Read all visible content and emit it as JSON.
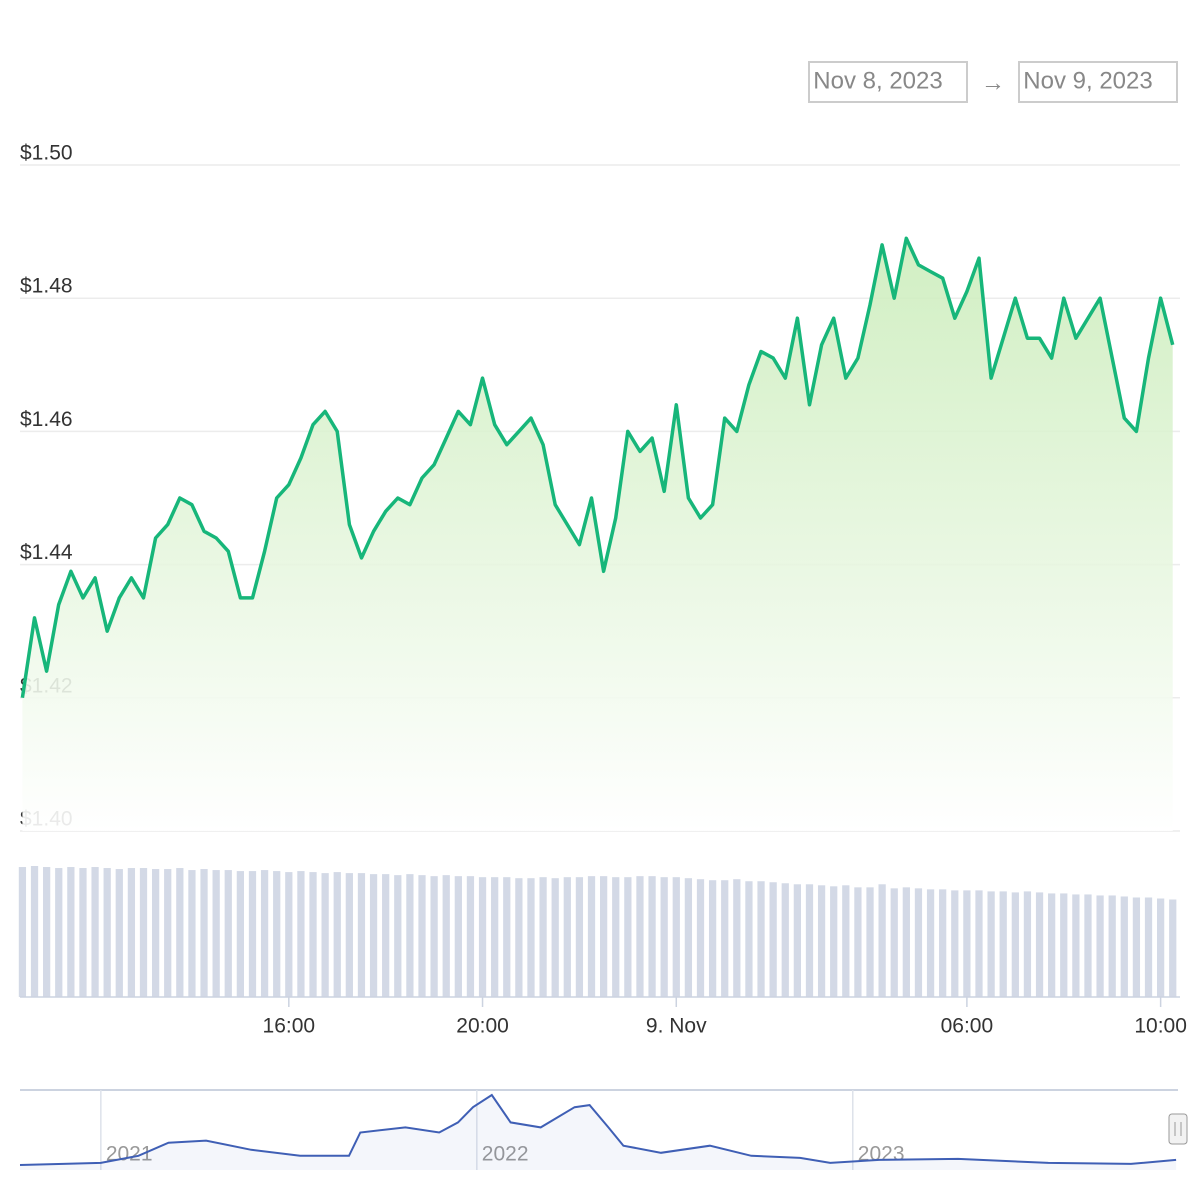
{
  "date_range": {
    "from": "Nov 8, 2023",
    "separator": "→",
    "to": "Nov 9, 2023"
  },
  "chart_data": [
    {
      "type": "area",
      "color": "#17b67a",
      "volume_color": "#d3d9e6",
      "grid": true,
      "x": [
        10.5,
        10.75,
        11,
        11.25,
        11.5,
        11.75,
        12,
        12.25,
        12.5,
        12.75,
        13,
        13.25,
        13.5,
        13.75,
        14,
        14.25,
        14.5,
        14.75,
        15,
        15.25,
        15.5,
        15.75,
        16,
        16.25,
        16.5,
        16.75,
        17,
        17.25,
        17.5,
        17.75,
        18,
        18.25,
        18.5,
        18.75,
        19,
        19.25,
        19.5,
        19.75,
        20,
        20.25,
        20.5,
        20.75,
        21,
        21.25,
        21.5,
        21.75,
        22,
        22.25,
        22.5,
        22.75,
        23,
        23.25,
        23.5,
        23.75,
        24,
        24.25,
        24.5,
        24.75,
        25,
        25.25,
        25.5,
        25.75,
        26,
        26.25,
        26.5,
        26.75,
        27,
        27.25,
        27.5,
        27.75,
        28,
        28.25,
        28.5,
        28.75,
        29,
        29.25,
        29.5,
        29.75,
        30,
        30.25,
        30.5,
        30.75,
        31,
        31.25,
        31.5,
        31.75,
        32,
        32.25,
        32.5,
        32.75,
        33,
        33.25,
        33.5,
        33.75,
        34,
        34.25
      ],
      "values": [
        1.42,
        1.432,
        1.424,
        1.434,
        1.439,
        1.435,
        1.438,
        1.43,
        1.435,
        1.438,
        1.435,
        1.444,
        1.446,
        1.45,
        1.449,
        1.445,
        1.444,
        1.442,
        1.435,
        1.435,
        1.442,
        1.45,
        1.452,
        1.456,
        1.461,
        1.463,
        1.46,
        1.446,
        1.441,
        1.445,
        1.448,
        1.45,
        1.449,
        1.453,
        1.455,
        1.459,
        1.463,
        1.461,
        1.468,
        1.461,
        1.458,
        1.46,
        1.462,
        1.458,
        1.449,
        1.446,
        1.443,
        1.45,
        1.439,
        1.447,
        1.46,
        1.457,
        1.459,
        1.451,
        1.464,
        1.45,
        1.447,
        1.449,
        1.462,
        1.46,
        1.467,
        1.472,
        1.471,
        1.468,
        1.477,
        1.464,
        1.473,
        1.477,
        1.468,
        1.471,
        1.479,
        1.488,
        1.48,
        1.489,
        1.485,
        1.484,
        1.483,
        1.477,
        1.481,
        1.486,
        1.468,
        1.474,
        1.48,
        1.474,
        1.474,
        1.471,
        1.48,
        1.474,
        1.477,
        1.48,
        1.471,
        1.462,
        1.46,
        1.471,
        1.48,
        1.473
      ],
      "volume": [
        128,
        129,
        128,
        127,
        128,
        127,
        128,
        127,
        126,
        127,
        127,
        126,
        126,
        127,
        125,
        126,
        125,
        125,
        124,
        124,
        125,
        124,
        123,
        124,
        123,
        122,
        123,
        122,
        122,
        121,
        121,
        120,
        121,
        120,
        119,
        120,
        119,
        119,
        118,
        118,
        118,
        117,
        117,
        118,
        117,
        118,
        118,
        119,
        119,
        118,
        118,
        119,
        119,
        118,
        118,
        117,
        116,
        115,
        115,
        116,
        114,
        114,
        113,
        112,
        111,
        111,
        110,
        109,
        110,
        108,
        108,
        111,
        107,
        108,
        107,
        106,
        106,
        105,
        105,
        105,
        104,
        104,
        103,
        104,
        103,
        102,
        102,
        101,
        101,
        100,
        100,
        99,
        98,
        98,
        97,
        96
      ],
      "xlim": [
        10.45,
        34.4
      ],
      "xticks": [
        {
          "value": 16,
          "label": "16:00"
        },
        {
          "value": 20,
          "label": "20:00"
        },
        {
          "value": 24,
          "label": "9. Nov"
        },
        {
          "value": 30,
          "label": "06:00"
        },
        {
          "value": 34,
          "label": "10:00"
        }
      ],
      "ylim": [
        1.4,
        1.5
      ],
      "yticks": [
        {
          "value": 1.4,
          "label": "$1.40"
        },
        {
          "value": 1.42,
          "label": "$1.42"
        },
        {
          "value": 1.44,
          "label": "$1.44"
        },
        {
          "value": 1.46,
          "label": "$1.46"
        },
        {
          "value": 1.48,
          "label": "$1.48"
        },
        {
          "value": 1.5,
          "label": "$1.50"
        }
      ]
    },
    {
      "type": "line",
      "color": "#3f5fb5",
      "x": [
        2020.785,
        2020.9,
        2021.0,
        2021.1,
        2021.18,
        2021.28,
        2021.4,
        2021.53,
        2021.66,
        2021.69,
        2021.81,
        2021.9,
        2021.95,
        2021.99,
        2022.04,
        2022.09,
        2022.17,
        2022.26,
        2022.3,
        2022.35,
        2022.39,
        2022.49,
        2022.62,
        2022.73,
        2022.86,
        2022.94,
        2023.07,
        2023.28,
        2023.52,
        2023.74,
        2023.86
      ],
      "values": [
        3,
        4,
        5,
        12,
        25,
        27,
        18,
        12,
        12,
        35,
        40,
        35,
        45,
        60,
        72,
        45,
        40,
        60,
        62,
        40,
        22,
        15,
        22,
        12,
        10,
        5,
        8,
        9,
        5,
        4,
        8
      ],
      "xlim": [
        2020.785,
        2023.865
      ],
      "xticks": [
        2021,
        2022,
        2023
      ]
    }
  ]
}
